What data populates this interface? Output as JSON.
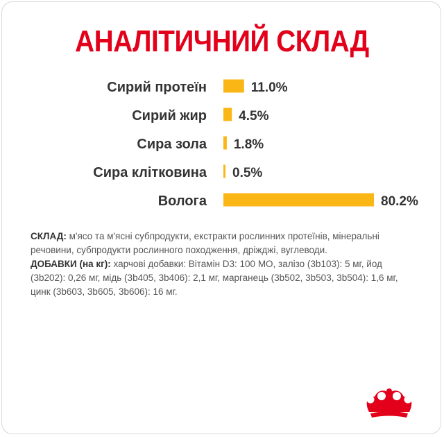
{
  "colors": {
    "title": "#e2001a",
    "bar": "#f9b614",
    "label": "#333333",
    "logo": "#e2001a"
  },
  "title": "АНАЛІТИЧНИЙ СКЛАД",
  "chart_data": {
    "type": "bar",
    "orientation": "horizontal",
    "categories": [
      "Сирий протеїн",
      "Сирий жир",
      "Сира зола",
      "Сира клітковина",
      "Волога"
    ],
    "values": [
      11.0,
      4.5,
      1.8,
      0.5,
      80.2
    ],
    "value_labels": [
      "11.0%",
      "4.5%",
      "1.8%",
      "0.5%",
      "80.2%"
    ],
    "title": "АНАЛІТИЧНИЙ СКЛАД",
    "xlabel": "",
    "ylabel": "",
    "xlim": [
      0,
      80.2
    ],
    "grid": false,
    "legend": "none"
  },
  "composition": {
    "sklad_label": "СКЛАД:",
    "sklad_text": " м'ясо та м'ясні субпродукти, екстракти рослинних протеїнів, мінеральні речовини, субпродукти рослинного походження, дріжджі, вуглеводи.",
    "additives_label": "ДОБАВКИ (на кг):",
    "additives_text": " харчові добавки: Вітамін D3: 100 МО, залізо (3b103): 5 мг, йод (3b202): 0,26 мг, мідь (3b405, 3b406): 2,1 мг, марганець (3b502, 3b503, 3b504): 1,6 мг, цинк (3b603, 3b605, 3b606): 16 мг."
  },
  "logo": {
    "icon": "crown-icon"
  }
}
